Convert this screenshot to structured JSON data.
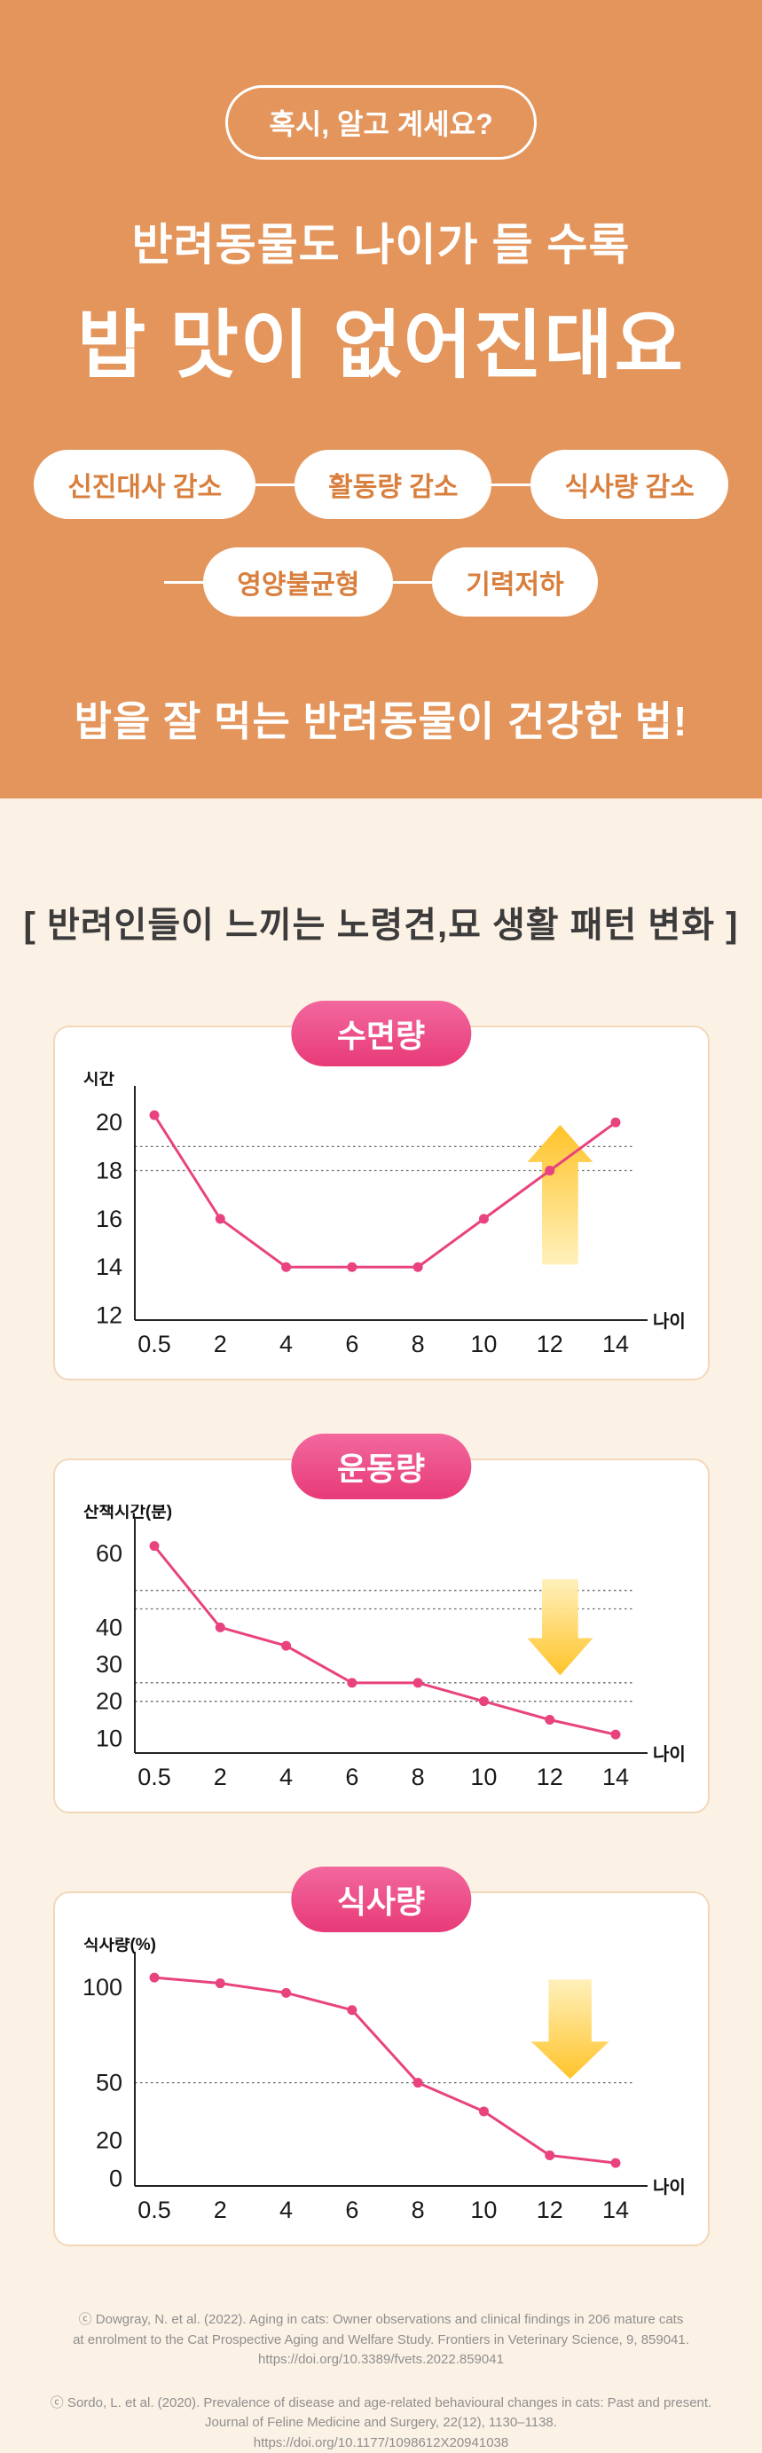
{
  "colors": {
    "orange_bg": "#E3955C",
    "cream_bg": "#FCF1E5",
    "pink": "#E8437E",
    "card_border": "#F3D7BA",
    "pill_text_orange": "#D97F3E",
    "arrow_dark": "#FFC01E",
    "arrow_light": "#FFF0B8"
  },
  "header": {
    "badge": "혹시, 알고 계세요?",
    "line1": "반려동물도 나이가 들 수록",
    "line2": "밥 맛이 없어진대요",
    "pills_row1": [
      "신진대사 감소",
      "활동량 감소",
      "식사량 감소"
    ],
    "pills_row2": [
      "영양불균형",
      "기력저하"
    ],
    "tagline": "밥을 잘 먹는 반려동물이 건강한 법!"
  },
  "section": {
    "title": "[ 반려인들이 느끼는 노령견,묘 생활 패턴 변화 ]"
  },
  "chart_data": [
    {
      "type": "line",
      "title": "수면량",
      "ylabel": "시간",
      "xlabel": "나이",
      "x": [
        0.5,
        2,
        4,
        6,
        8,
        10,
        12,
        14
      ],
      "values": [
        20.3,
        16,
        14,
        14,
        14,
        16,
        18,
        20
      ],
      "yticks": [
        20,
        18,
        16,
        14,
        12
      ],
      "ylim": [
        11.8,
        21
      ],
      "dashed_lines": [
        19,
        18
      ],
      "legend": "none",
      "grid": "dashed-threshold-only",
      "arrow": {
        "direction": "up",
        "x_frac": 0.85,
        "top": 19.9,
        "bottom": 14.1,
        "width": 74
      }
    },
    {
      "type": "line",
      "title": "운동량",
      "ylabel": "산책시간(분)",
      "xlabel": "나이",
      "x": [
        0.5,
        2,
        4,
        6,
        8,
        10,
        12,
        14
      ],
      "values": [
        62,
        40,
        35,
        25,
        25,
        20,
        15,
        11
      ],
      "yticks": [
        60,
        40,
        30,
        20,
        10
      ],
      "ylim": [
        6,
        66
      ],
      "dashed_lines": [
        50,
        45,
        25,
        20
      ],
      "legend": "none",
      "grid": "dashed-threshold-only",
      "arrow": {
        "direction": "down",
        "x_frac": 0.85,
        "top": 53,
        "bottom": 27,
        "width": 74
      }
    },
    {
      "type": "line",
      "title": "식사량",
      "ylabel": "식사량(%)",
      "xlabel": "나이",
      "x": [
        0.5,
        2,
        4,
        6,
        8,
        10,
        12,
        14
      ],
      "values": [
        105,
        102,
        97,
        88,
        50,
        35,
        12,
        8
      ],
      "yticks": [
        100,
        50,
        20,
        0
      ],
      "ylim": [
        -4,
        112
      ],
      "dashed_lines": [
        50
      ],
      "legend": "none",
      "grid": "dashed-threshold-only",
      "arrow": {
        "direction": "down",
        "x_frac": 0.87,
        "top": 104,
        "bottom": 52,
        "width": 88
      }
    }
  ],
  "footer": {
    "citation1": [
      "ⓒ Dowgray, N. et al. (2022). Aging in cats: Owner observations and clinical findings in 206 mature cats",
      "at enrolment to the Cat Prospective Aging and Welfare Study. Frontiers in Veterinary Science, 9, 859041.",
      "https://doi.org/10.3389/fvets.2022.859041"
    ],
    "citation2": [
      "ⓒ Sordo, L. et al. (2020). Prevalence of disease and age-related behavioural changes in cats: Past and present.",
      "Journal of Feline Medicine and Surgery, 22(12), 1130–1138.",
      "https://doi.org/10.1177/1098612X20941038"
    ]
  }
}
